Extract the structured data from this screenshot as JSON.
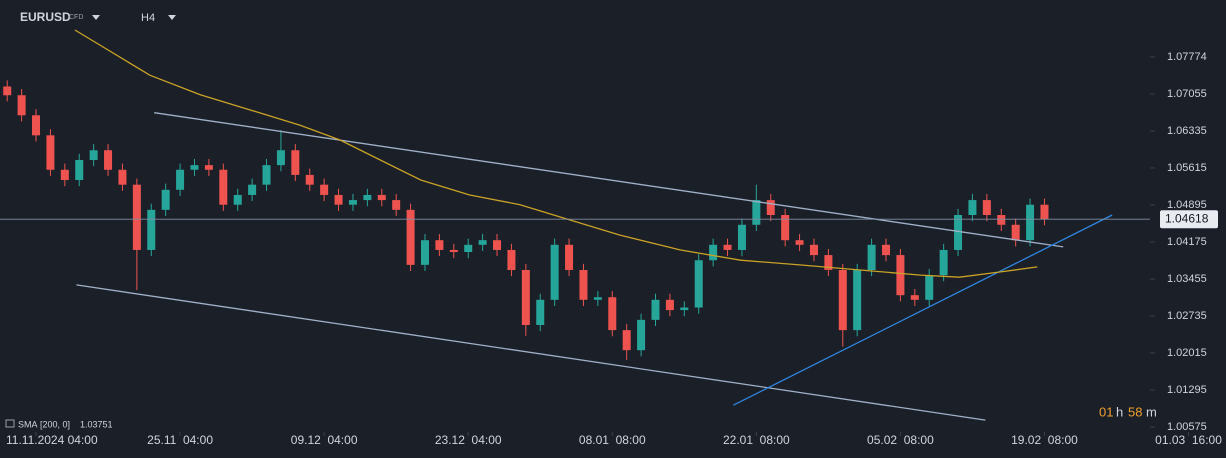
{
  "chart_data": {
    "type": "candlestick",
    "symbol": "EURUSD",
    "symbol_tag": "CFD",
    "timeframe": "H4",
    "indicator": {
      "name": "SMA",
      "params": "[200, 0]",
      "value": 1.03751
    },
    "countdown": {
      "hours": "01",
      "hours_unit": "h",
      "minutes": "58",
      "minutes_unit": "m"
    },
    "last_price": 1.04618,
    "xlim": [
      -0.25,
      8.26
    ],
    "ylim": [
      1.00478,
      1.08883
    ],
    "xticks": [
      {
        "value": 0,
        "label": "11.11.2024 04:00"
      },
      {
        "value": 1,
        "label": "25.11  04:00"
      },
      {
        "value": 2,
        "label": "09.12  04:00"
      },
      {
        "value": 3,
        "label": "23.12  04:00"
      },
      {
        "value": 4,
        "label": "08.01  08:00"
      },
      {
        "value": 5,
        "label": "22.01  08:00"
      },
      {
        "value": 6,
        "label": "05.02  08:00"
      },
      {
        "value": 7,
        "label": "19.02  08:00"
      },
      {
        "value": 8,
        "label": "01.03  16:00"
      }
    ],
    "yticks": [
      1.07774,
      1.07055,
      1.06335,
      1.05615,
      1.04895,
      1.04175,
      1.03455,
      1.02735,
      1.02015,
      1.01295,
      1.00575
    ],
    "up_color": "#26a69a",
    "down_color": "#ef5350",
    "x": [
      -0.2,
      -0.1,
      0,
      0.1,
      0.2,
      0.3,
      0.4,
      0.5,
      0.6,
      0.7,
      0.8,
      0.9,
      1,
      1.1,
      1.2,
      1.3,
      1.4,
      1.5,
      1.6,
      1.7,
      1.8,
      1.9,
      2,
      2.1,
      2.2,
      2.3,
      2.4,
      2.5,
      2.6,
      2.7,
      2.8,
      2.9,
      3,
      3.1,
      3.2,
      3.3,
      3.4,
      3.5,
      3.6,
      3.7,
      3.8,
      3.9,
      4,
      4.1,
      4.2,
      4.3,
      4.4,
      4.5,
      4.6,
      4.7,
      4.8,
      4.9,
      5,
      5.1,
      5.2,
      5.3,
      5.4,
      5.5,
      5.6,
      5.7,
      5.8,
      5.9,
      6,
      6.1,
      6.2,
      6.3,
      6.4,
      6.5,
      6.6,
      6.7,
      6.8,
      6.9,
      7
    ],
    "open": [
      1.072,
      1.0703,
      1.0664,
      1.0625,
      1.0558,
      1.0538,
      1.0577,
      1.0596,
      1.0558,
      1.0529,
      1.0402,
      1.048,
      1.0519,
      1.0558,
      1.0567,
      1.0558,
      1.049,
      1.0509,
      1.0529,
      1.0567,
      1.0596,
      1.0548,
      1.0529,
      1.0509,
      1.049,
      1.0499,
      1.0509,
      1.0499,
      1.048,
      1.0373,
      1.0421,
      1.0402,
      1.0398,
      1.0412,
      1.0421,
      1.0402,
      1.0363,
      1.0256,
      1.0305,
      1.0412,
      1.0363,
      1.0305,
      1.031,
      1.0246,
      1.0207,
      1.0266,
      1.0305,
      1.0285,
      1.029,
      1.0382,
      1.0412,
      1.0402,
      1.0451,
      1.0499,
      1.047,
      1.0421,
      1.0412,
      1.0392,
      1.0363,
      1.0246,
      1.0363,
      1.0412,
      1.0392,
      1.0314,
      1.0305,
      1.0353,
      1.0402,
      1.047,
      1.0499,
      1.047,
      1.0451,
      1.0421,
      1.049
    ],
    "high": [
      1.0732,
      1.0715,
      1.0676,
      1.0637,
      1.057,
      1.0589,
      1.0608,
      1.0608,
      1.057,
      1.0541,
      1.0492,
      1.0531,
      1.057,
      1.0579,
      1.0579,
      1.057,
      1.0521,
      1.0541,
      1.0579,
      1.0635,
      1.0608,
      1.056,
      1.0541,
      1.0521,
      1.0511,
      1.0521,
      1.0521,
      1.0511,
      1.0492,
      1.0433,
      1.0433,
      1.0414,
      1.0424,
      1.0433,
      1.0433,
      1.0414,
      1.0375,
      1.0317,
      1.0424,
      1.0424,
      1.0375,
      1.0322,
      1.0322,
      1.0258,
      1.0278,
      1.0317,
      1.0317,
      1.0302,
      1.0394,
      1.0424,
      1.0424,
      1.0463,
      1.0529,
      1.0511,
      1.0482,
      1.0433,
      1.0424,
      1.0404,
      1.0375,
      1.0375,
      1.0424,
      1.0424,
      1.0404,
      1.0326,
      1.0365,
      1.0414,
      1.0482,
      1.0511,
      1.0511,
      1.0482,
      1.0463,
      1.0502,
      1.0502
    ],
    "low": [
      1.0691,
      1.0652,
      1.0613,
      1.0546,
      1.0526,
      1.0526,
      1.0565,
      1.0546,
      1.0517,
      1.0324,
      1.039,
      1.0468,
      1.0507,
      1.0546,
      1.0546,
      1.0478,
      1.0478,
      1.0497,
      1.0517,
      1.0555,
      1.0536,
      1.0517,
      1.0497,
      1.0478,
      1.0478,
      1.0487,
      1.0487,
      1.0468,
      1.0361,
      1.0361,
      1.039,
      1.0386,
      1.0386,
      1.04,
      1.039,
      1.0351,
      1.0235,
      1.0244,
      1.0293,
      1.0351,
      1.0293,
      1.0293,
      1.0234,
      1.0188,
      1.0195,
      1.0254,
      1.0273,
      1.0273,
      1.0278,
      1.037,
      1.039,
      1.039,
      1.0439,
      1.0458,
      1.0409,
      1.04,
      1.038,
      1.0351,
      1.0214,
      1.0234,
      1.0351,
      1.038,
      1.0302,
      1.0293,
      1.0293,
      1.0341,
      1.039,
      1.0458,
      1.0458,
      1.0439,
      1.0409,
      1.0409,
      1.045
    ],
    "close": [
      1.0703,
      1.0664,
      1.0625,
      1.0558,
      1.0538,
      1.0577,
      1.0596,
      1.0558,
      1.0529,
      1.0402,
      1.048,
      1.0519,
      1.0558,
      1.0567,
      1.0558,
      1.049,
      1.0509,
      1.0529,
      1.0567,
      1.0596,
      1.0548,
      1.0529,
      1.0509,
      1.049,
      1.0499,
      1.0509,
      1.0499,
      1.048,
      1.0373,
      1.0421,
      1.0402,
      1.0398,
      1.0412,
      1.0421,
      1.0402,
      1.0363,
      1.0256,
      1.0305,
      1.0412,
      1.0363,
      1.0305,
      1.031,
      1.0246,
      1.0207,
      1.0266,
      1.0305,
      1.0285,
      1.029,
      1.0382,
      1.0412,
      1.0402,
      1.0451,
      1.0499,
      1.047,
      1.0421,
      1.0412,
      1.0392,
      1.0363,
      1.0246,
      1.0363,
      1.0412,
      1.0392,
      1.0314,
      1.0305,
      1.0353,
      1.0402,
      1.047,
      1.0499,
      1.047,
      1.0451,
      1.0421,
      1.049,
      1.04618
    ],
    "sma": {
      "color": "#c9a227",
      "x": [
        0.27,
        0.79,
        1.14,
        1.49,
        1.83,
        2.11,
        2.39,
        2.67,
        3.01,
        3.36,
        3.71,
        4.05,
        4.47,
        4.89,
        5.3,
        5.72,
        6.14,
        6.41,
        6.69,
        6.95
      ],
      "values": [
        1.083,
        1.0742,
        1.0704,
        1.0674,
        1.0645,
        1.0616,
        1.0577,
        1.0538,
        1.0509,
        1.049,
        1.046,
        1.0431,
        1.0402,
        1.0382,
        1.0373,
        1.0363,
        1.0353,
        1.0349,
        1.0359,
        1.0369
      ]
    },
    "trendlines": [
      {
        "color": "#9fb0c8",
        "x": [
          0.82,
          7.13
        ],
        "values": [
          1.0669,
          1.0408
        ]
      },
      {
        "color": "#9fb0c8",
        "x": [
          0.28,
          6.59
        ],
        "values": [
          1.0334,
          1.0071
        ]
      },
      {
        "color": "#2f86e0",
        "x": [
          4.84,
          7.47
        ],
        "values": [
          1.01,
          1.047
        ]
      }
    ]
  }
}
